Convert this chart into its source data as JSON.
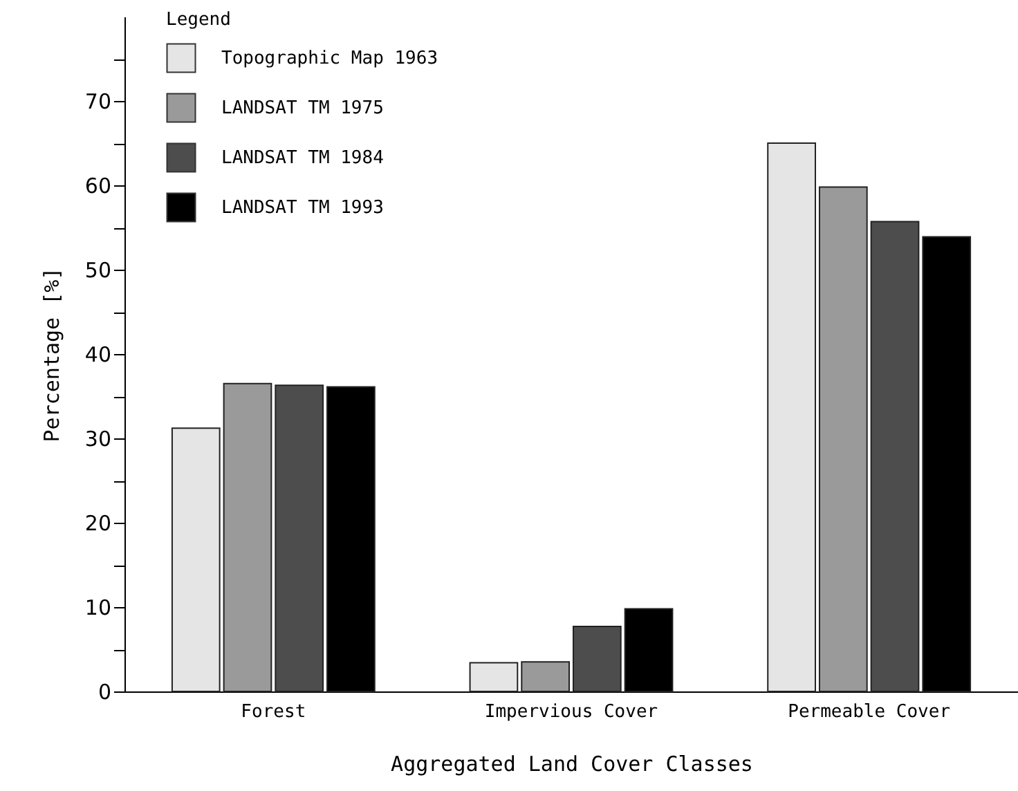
{
  "chart_data": {
    "type": "bar",
    "xlabel": "Aggregated Land Cover Classes",
    "ylabel": "Percentage [%]",
    "legend_title": "Legend",
    "categories": [
      "Forest",
      "Impervious Cover",
      "Permeable Cover"
    ],
    "series": [
      {
        "name": "Topographic Map 1963",
        "color": "#e5e5e5",
        "values": [
          31.2,
          3.4,
          65.0
        ]
      },
      {
        "name": "LANDSAT TM 1975",
        "color": "#9a9a9a",
        "values": [
          36.5,
          3.5,
          59.8
        ]
      },
      {
        "name": "LANDSAT TM 1984",
        "color": "#4d4d4d",
        "values": [
          36.3,
          7.7,
          55.7
        ]
      },
      {
        "name": "LANDSAT TM 1993",
        "color": "#000000",
        "values": [
          36.1,
          9.8,
          53.9
        ]
      }
    ],
    "ylim": [
      0,
      80
    ],
    "yticks": [
      0,
      {
        "value": 5,
        "label": null
      },
      10,
      {
        "value": 15,
        "label": null
      },
      20,
      {
        "value": 25,
        "label": null
      },
      30,
      {
        "value": 35,
        "label": null
      },
      40,
      {
        "value": 45,
        "label": null
      },
      50,
      {
        "value": 55,
        "label": null
      },
      60,
      {
        "value": 65,
        "label": null
      },
      70,
      {
        "value": 75,
        "label": null
      }
    ],
    "grid": false,
    "legend": "top left"
  }
}
